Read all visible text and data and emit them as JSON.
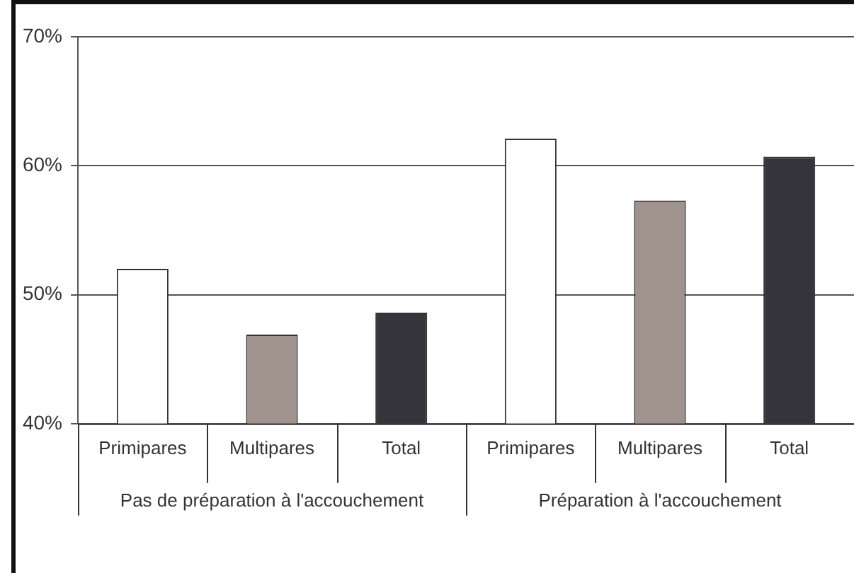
{
  "chart_data": {
    "type": "bar",
    "categories": [
      "Primipares",
      "Multipares",
      "Total",
      "Primipares",
      "Multipares",
      "Total"
    ],
    "values": [
      52.0,
      46.9,
      48.6,
      62.1,
      57.3,
      60.7
    ],
    "colors": [
      "#ffffff",
      "#a0928d",
      "#35343a",
      "#ffffff",
      "#a0928d",
      "#35343a"
    ],
    "ylim": [
      40,
      70
    ],
    "yticks": [
      {
        "value": 40,
        "label": "40%"
      },
      {
        "value": 50,
        "label": "50%"
      },
      {
        "value": 60,
        "label": "60%"
      },
      {
        "value": 70,
        "label": "70%"
      }
    ],
    "grid": "y",
    "annotations": [
      "Pas de préparation à l'accouchement",
      "Préparation à l'accouchement"
    ]
  }
}
